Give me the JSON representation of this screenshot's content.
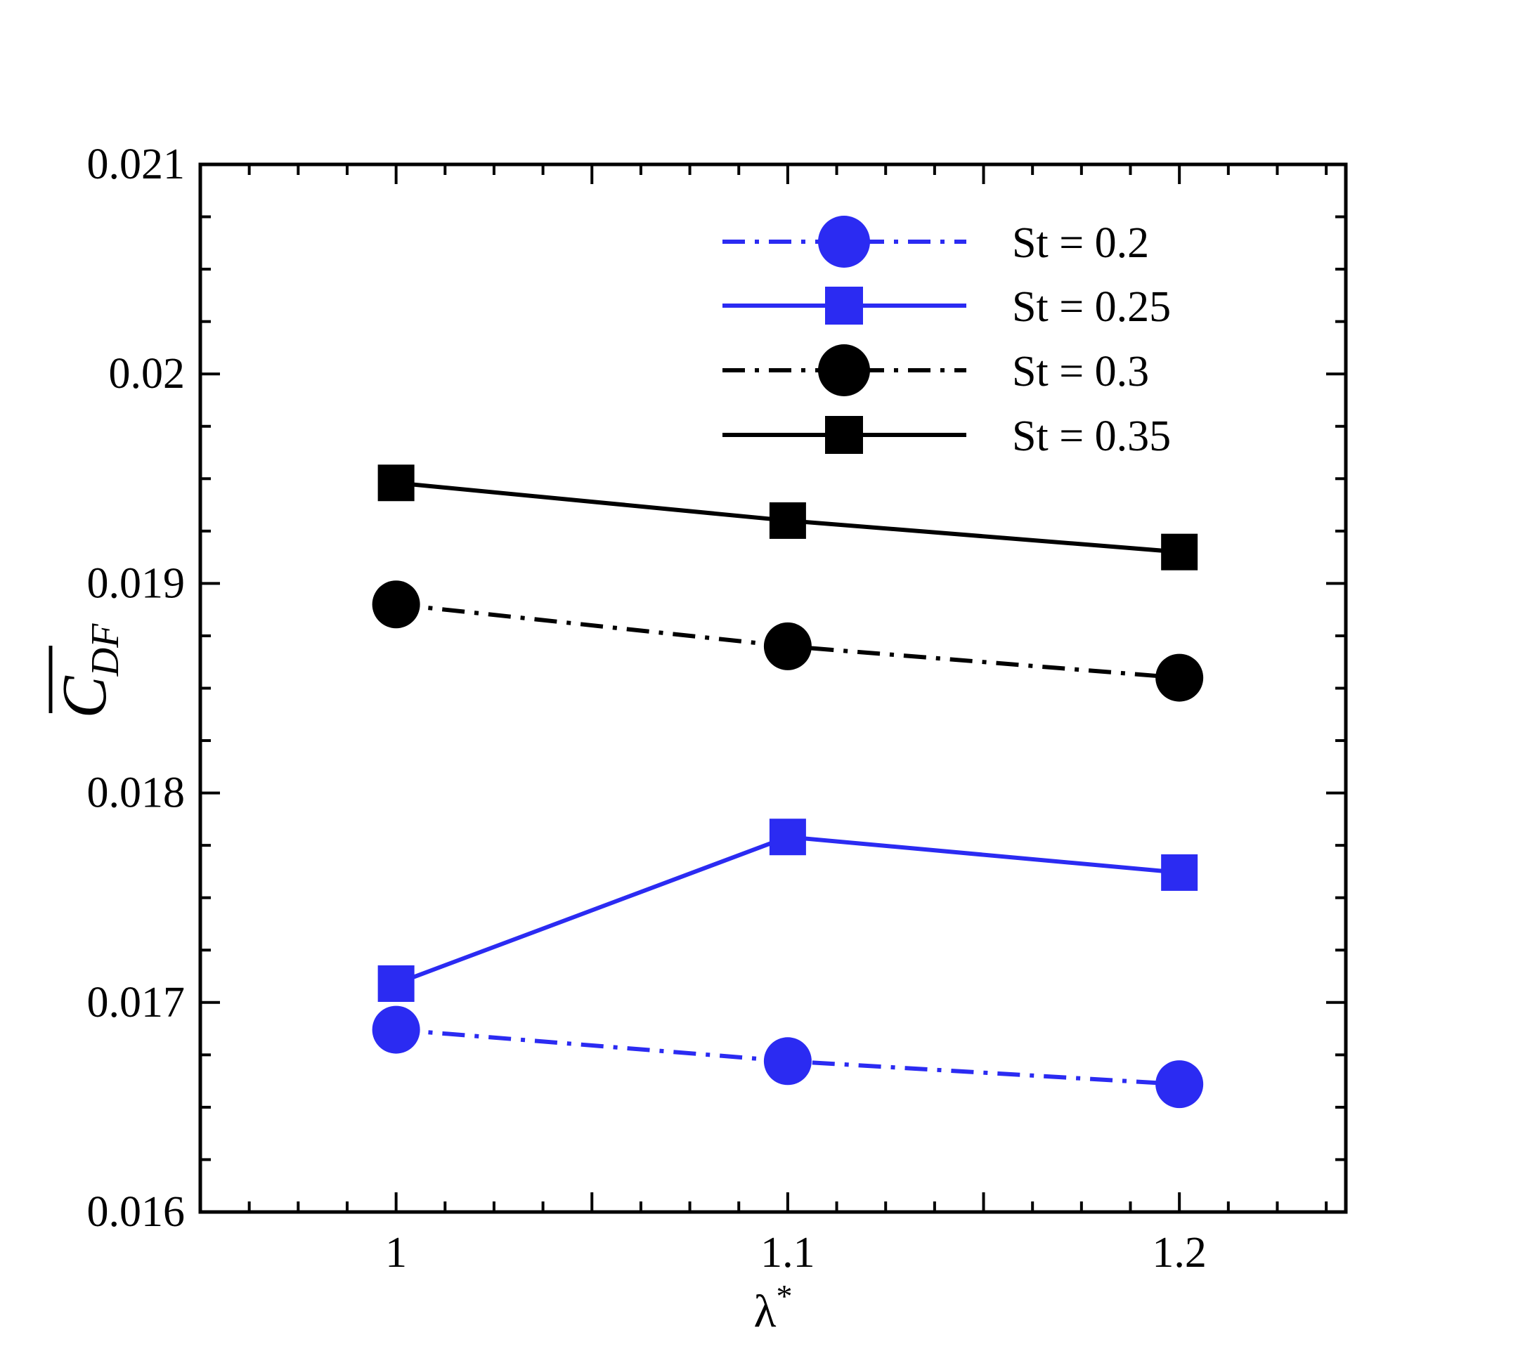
{
  "chart_data": {
    "type": "line",
    "xlabel": "λ",
    "xlabel_superscript": "*",
    "ylabel": "C",
    "ylabel_subscript": "DF",
    "ylabel_overline": true,
    "xlim": [
      0.95,
      1.2425
    ],
    "ylim": [
      0.016,
      0.021
    ],
    "x_ticks": [
      1,
      1.1,
      1.2
    ],
    "x_tick_labels": [
      "1",
      "1.1",
      "1.2"
    ],
    "y_ticks": [
      0.016,
      0.017,
      0.018,
      0.019,
      0.02,
      0.021
    ],
    "y_tick_labels": [
      "0.016",
      "0.017",
      "0.018",
      "0.019",
      "0.02",
      "0.021"
    ],
    "grid": false,
    "legend_position": "top-right",
    "x": [
      1,
      1.1,
      1.2
    ],
    "series": [
      {
        "name": "St = 0.2",
        "values": [
          0.01687,
          0.01672,
          0.01661
        ],
        "color": "#2b2bf2",
        "line_style": "dash-dot",
        "marker": "circle"
      },
      {
        "name": "St = 0.25",
        "values": [
          0.01709,
          0.01779,
          0.01762
        ],
        "color": "#2b2bf2",
        "line_style": "solid",
        "marker": "square"
      },
      {
        "name": "St = 0.3",
        "values": [
          0.0189,
          0.0187,
          0.01855
        ],
        "color": "#000000",
        "line_style": "dash-dot",
        "marker": "circle"
      },
      {
        "name": "St = 0.35",
        "values": [
          0.01948,
          0.0193,
          0.01915
        ],
        "color": "#000000",
        "line_style": "solid",
        "marker": "square"
      }
    ]
  }
}
